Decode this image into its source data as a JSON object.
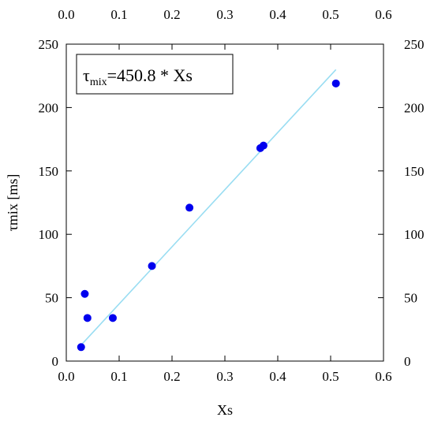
{
  "chart_data": {
    "type": "scatter",
    "xlabel": "Xs",
    "ylabel": "τmix [ms]",
    "xlim": [
      0.0,
      0.6
    ],
    "ylim": [
      0,
      250
    ],
    "x_ticks": [
      "0.0",
      "0.1",
      "0.2",
      "0.3",
      "0.4",
      "0.5",
      "0.6"
    ],
    "y_ticks": [
      "0",
      "50",
      "100",
      "150",
      "200",
      "250"
    ],
    "x_tick_values": [
      0.0,
      0.1,
      0.2,
      0.3,
      0.4,
      0.5,
      0.6
    ],
    "y_tick_values": [
      0,
      50,
      100,
      150,
      200,
      250
    ],
    "grid": false,
    "annotation": {
      "symbol": "τ",
      "subscript": "mix",
      "rest": "=450.8 * Xs"
    },
    "series": [
      {
        "type": "scatter",
        "color": "#0000ee",
        "points": [
          {
            "x": 0.028,
            "y": 11
          },
          {
            "x": 0.035,
            "y": 53
          },
          {
            "x": 0.04,
            "y": 34
          },
          {
            "x": 0.088,
            "y": 34
          },
          {
            "x": 0.162,
            "y": 75
          },
          {
            "x": 0.233,
            "y": 121
          },
          {
            "x": 0.367,
            "y": 168
          },
          {
            "x": 0.373,
            "y": 170
          },
          {
            "x": 0.51,
            "y": 219
          }
        ]
      },
      {
        "type": "line",
        "color": "#99ddf2",
        "slope": 450.8,
        "x_range": [
          0.028,
          0.51
        ]
      }
    ]
  }
}
